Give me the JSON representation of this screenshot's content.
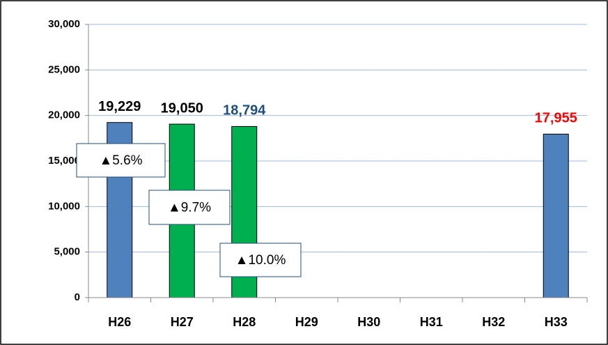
{
  "chart_data": {
    "type": "bar",
    "categories": [
      "H26",
      "H27",
      "H28",
      "H29",
      "H30",
      "H31",
      "H32",
      "H33"
    ],
    "values": [
      19229,
      19050,
      18794,
      null,
      null,
      null,
      null,
      17955
    ],
    "value_labels": [
      "19,229",
      "19,050",
      "18,794",
      null,
      null,
      null,
      null,
      "17,955"
    ],
    "colors": [
      "#4f81bd",
      "#00b050",
      "#00b050",
      null,
      null,
      null,
      null,
      "#4f81bd"
    ],
    "value_label_colors": [
      "#000000",
      "#000000",
      "#1f4e79",
      null,
      null,
      null,
      null,
      "#ff0000"
    ],
    "annotations": [
      "▲5.6%",
      "▲9.7%",
      "▲10.0%"
    ],
    "ylim": [
      0,
      30000
    ],
    "yticks": [
      0,
      {
        "value": 5000,
        "label": "5,000"
      },
      {
        "value": 10000,
        "label": "10,000"
      },
      {
        "value": 15000,
        "label": "15,000"
      },
      {
        "value": 20000,
        "label": "20,000"
      },
      {
        "value": 25000,
        "label": "25,000"
      },
      {
        "value": 30000,
        "label": "30,000"
      }
    ],
    "grid": true
  }
}
